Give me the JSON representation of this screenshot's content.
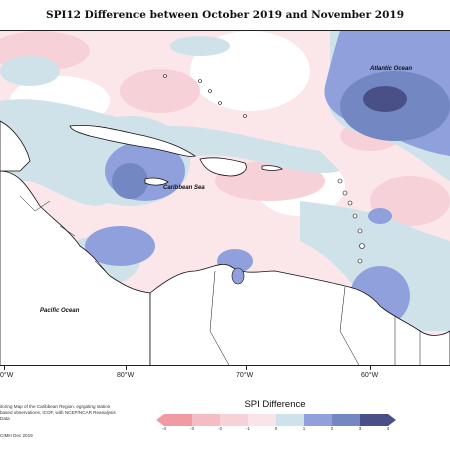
{
  "title": "SPI12 Difference between October 2019 and November 2019",
  "map": {
    "labels": {
      "atlantic": "Atlantic Ocean",
      "caribbean": "Caribbean Sea",
      "pacific": "Pacific Ocean"
    },
    "longitude_ticks": [
      "80°W",
      "70°W",
      "60°W"
    ],
    "left_edge_tick": "0°W"
  },
  "legend": {
    "title": "SPI Difference",
    "ticks": [
      "-4",
      "-3",
      "-2",
      "-1",
      "0",
      "1",
      "2",
      "3",
      "4"
    ],
    "colors": [
      "#f29aa3",
      "#f4bcc3",
      "#f6d2d8",
      "#fbe4e8",
      "#ffffff",
      "#cfe2ea",
      "#8fa0dc",
      "#7388c2",
      "#485087"
    ]
  },
  "credit": {
    "text": "itoring Map of the Caribbean Region. egrgating station based observations, ICOF, with NCEP/NCAR Reanalysis Data",
    "footer": "CIMH Dec 2019"
  }
}
